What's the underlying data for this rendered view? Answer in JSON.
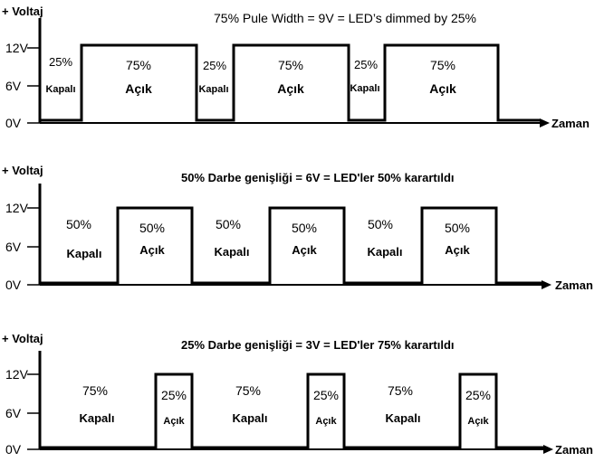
{
  "panels": [
    {
      "y_label": "+ Voltaj",
      "title": "75% Pule Width = 9V = LED’s dimmed by 25%",
      "x_label": "Zaman",
      "ticks": [
        "12V",
        "6V",
        "0V"
      ],
      "off_pct": "25%",
      "off_label": "Kapalı",
      "on_pct": "75%",
      "on_label": "Açık",
      "duty": 0.75,
      "pulses": 3
    },
    {
      "y_label": "+ Voltaj",
      "title": "50% Darbe genişliği  = 6V =  LED'ler 50% karartıldı",
      "x_label": "Zaman",
      "ticks": [
        "12V",
        "6V",
        "0V"
      ],
      "off_pct": "50%",
      "off_label": "Kapalı",
      "on_pct": "50%",
      "on_label": "Açık",
      "duty": 0.5,
      "pulses": 3
    },
    {
      "y_label": "+ Voltaj",
      "title": "25% Darbe genişliği = 3V = LED'ler 75% karartıldı",
      "x_label": "Zaman",
      "ticks": [
        "12V",
        "6V",
        "0V"
      ],
      "off_pct": "75%",
      "off_label": "Kapalı",
      "on_pct": "25%",
      "on_label": "Açık",
      "duty": 0.25,
      "pulses": 3
    }
  ]
}
